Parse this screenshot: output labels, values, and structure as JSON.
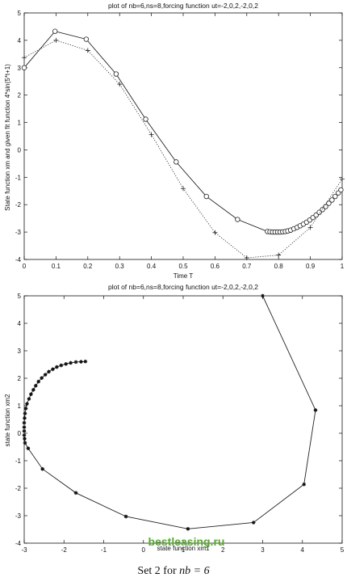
{
  "chart_data": [
    {
      "type": "line",
      "title": "plot of nb=6,ns=8,forcing function ut=-2,0,2,-2,0,2",
      "xlabel": "Time T",
      "ylabel": "State function xm and given fit function 4*sin(5*t+1)",
      "xlim": [
        0,
        1
      ],
      "ylim": [
        -4,
        5
      ],
      "xticks": [
        "0",
        "0.1",
        "0.2",
        "0.3",
        "0.4",
        "0.5",
        "0.6",
        "0.7",
        "0.8",
        "0.9",
        "1"
      ],
      "yticks": [
        "-4",
        "-3",
        "-2",
        "-1",
        "0",
        "1",
        "2",
        "3",
        "4",
        "5"
      ],
      "grid": false,
      "series": [
        {
          "style": "solid line with circle markers",
          "x": [
            0,
            0.097,
            0.195,
            0.289,
            0.382,
            0.478,
            0.573,
            0.671,
            0.765,
            0.773,
            0.781,
            0.789,
            0.797,
            0.805,
            0.813,
            0.821,
            0.829,
            0.838,
            0.848,
            0.858,
            0.868,
            0.878,
            0.888,
            0.898,
            0.908,
            0.918,
            0.928,
            0.938,
            0.948,
            0.958,
            0.968,
            0.978,
            0.988,
            0.996
          ],
          "y": [
            3.0,
            4.33,
            4.04,
            2.77,
            1.12,
            -0.44,
            -1.7,
            -2.54,
            -2.98,
            -2.99,
            -3.0,
            -3.0,
            -3.0,
            -3.0,
            -2.99,
            -2.98,
            -2.96,
            -2.93,
            -2.88,
            -2.83,
            -2.77,
            -2.71,
            -2.64,
            -2.56,
            -2.47,
            -2.38,
            -2.28,
            -2.18,
            -2.07,
            -1.95,
            -1.83,
            -1.7,
            -1.57,
            -1.46
          ]
        },
        {
          "style": "dotted line with plus markers",
          "x": [
            0,
            0.1,
            0.2,
            0.3,
            0.4,
            0.5,
            0.6,
            0.7,
            0.8,
            0.9,
            1.0
          ],
          "y": [
            3.37,
            4.0,
            3.63,
            2.4,
            0.56,
            -1.41,
            -3.02,
            -3.94,
            -3.84,
            -2.83,
            -1.06
          ]
        }
      ]
    },
    {
      "type": "line",
      "title": "plot of nb=6,ns=8,forcing function ut=-2,0,2,-2,0,2",
      "xlabel": "state function xm1",
      "ylabel": "state function xm2",
      "xlim": [
        -3,
        5
      ],
      "ylim": [
        -4,
        5
      ],
      "xticks": [
        "-3",
        "-2",
        "-1",
        "0",
        "1",
        "2",
        "3",
        "4",
        "5"
      ],
      "yticks": [
        "-4",
        "-3",
        "-2",
        "-1",
        "0",
        "1",
        "2",
        "3",
        "4",
        "5"
      ],
      "grid": false,
      "series": [
        {
          "style": "solid line with star markers",
          "x": [
            3.0,
            4.33,
            4.04,
            2.77,
            1.12,
            -0.44,
            -1.7,
            -2.54,
            -2.9,
            -2.98,
            -2.99,
            -3.0,
            -3.0,
            -3.0,
            -3.0,
            -2.99,
            -2.98,
            -2.96,
            -2.93,
            -2.88,
            -2.83,
            -2.77,
            -2.71,
            -2.64,
            -2.56,
            -2.47,
            -2.38,
            -2.28,
            -2.18,
            -2.07,
            -1.95,
            -1.83,
            -1.7,
            -1.57,
            -1.46
          ],
          "y": [
            5.0,
            0.84,
            -1.86,
            -3.25,
            -3.48,
            -3.03,
            -2.17,
            -1.3,
            -0.55,
            -0.35,
            -0.2,
            -0.07,
            0.08,
            0.22,
            0.38,
            0.55,
            0.72,
            0.9,
            1.07,
            1.25,
            1.42,
            1.58,
            1.73,
            1.88,
            2.01,
            2.13,
            2.24,
            2.33,
            2.41,
            2.47,
            2.52,
            2.56,
            2.59,
            2.6,
            2.61
          ]
        }
      ]
    }
  ],
  "watermark": "bestleasing.ru",
  "caption": {
    "text": "Set 2 for",
    "math": "nb = 6"
  }
}
